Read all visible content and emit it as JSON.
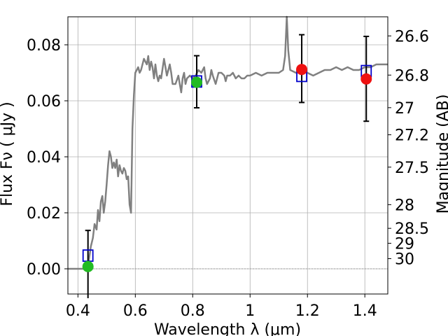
{
  "chart_data": {
    "type": "scatter",
    "title": "",
    "xlabel": "Wavelength  λ (μm)",
    "ylabel": "Flux  Fν  ( μJy )",
    "ylabel_right": "Magnitude (AB)",
    "xlim": [
      0.365,
      1.48
    ],
    "ylim": [
      -0.009,
      0.09
    ],
    "grid": true,
    "legend": "none",
    "x_ticks": [
      {
        "value": 0.4,
        "label": "0.4"
      },
      {
        "value": 0.6,
        "label": "0.6"
      },
      {
        "value": 0.8,
        "label": "0.8"
      },
      {
        "value": 1.0,
        "label": "1"
      },
      {
        "value": 1.2,
        "label": "1.2"
      },
      {
        "value": 1.4,
        "label": "1.4"
      }
    ],
    "y_ticks": [
      {
        "value": 0.0,
        "label": "0.00"
      },
      {
        "value": 0.02,
        "label": "0.02"
      },
      {
        "value": 0.04,
        "label": "0.04"
      },
      {
        "value": 0.06,
        "label": "0.06"
      },
      {
        "value": 0.08,
        "label": "0.08"
      }
    ],
    "mag_ticks": [
      {
        "value": 26.6,
        "label": "26.6"
      },
      {
        "value": 26.8,
        "label": "26.8"
      },
      {
        "value": 27.0,
        "label": "27"
      },
      {
        "value": 27.2,
        "label": "27.2"
      },
      {
        "value": 27.5,
        "label": "27.5"
      },
      {
        "value": 28.0,
        "label": "28"
      },
      {
        "value": 28.5,
        "label": "28.5"
      },
      {
        "value": 29.0,
        "label": "29"
      },
      {
        "value": 30.0,
        "label": "30"
      }
    ],
    "template_spectrum": {
      "color": "#808080",
      "points": [
        [
          0.365,
          0.0
        ],
        [
          0.41,
          0.0
        ],
        [
          0.42,
          0.0
        ],
        [
          0.43,
          0.002
        ],
        [
          0.438,
          0.003
        ],
        [
          0.445,
          0.008
        ],
        [
          0.452,
          0.011
        ],
        [
          0.458,
          0.016
        ],
        [
          0.465,
          0.014
        ],
        [
          0.47,
          0.021
        ],
        [
          0.475,
          0.017
        ],
        [
          0.48,
          0.024
        ],
        [
          0.485,
          0.026
        ],
        [
          0.49,
          0.02
        ],
        [
          0.495,
          0.024
        ],
        [
          0.5,
          0.03
        ],
        [
          0.505,
          0.037
        ],
        [
          0.51,
          0.042
        ],
        [
          0.515,
          0.04
        ],
        [
          0.52,
          0.036
        ],
        [
          0.525,
          0.038
        ],
        [
          0.53,
          0.036
        ],
        [
          0.535,
          0.039
        ],
        [
          0.54,
          0.033
        ],
        [
          0.545,
          0.037
        ],
        [
          0.55,
          0.035
        ],
        [
          0.555,
          0.034
        ],
        [
          0.56,
          0.036
        ],
        [
          0.565,
          0.035
        ],
        [
          0.57,
          0.032
        ],
        [
          0.575,
          0.033
        ],
        [
          0.58,
          0.023
        ],
        [
          0.585,
          0.02
        ],
        [
          0.59,
          0.05
        ],
        [
          0.595,
          0.062
        ],
        [
          0.6,
          0.07
        ],
        [
          0.61,
          0.072
        ],
        [
          0.615,
          0.07
        ],
        [
          0.62,
          0.071
        ],
        [
          0.63,
          0.075
        ],
        [
          0.64,
          0.073
        ],
        [
          0.645,
          0.076
        ],
        [
          0.65,
          0.071
        ],
        [
          0.655,
          0.074
        ],
        [
          0.66,
          0.072
        ],
        [
          0.665,
          0.068
        ],
        [
          0.67,
          0.073
        ],
        [
          0.675,
          0.069
        ],
        [
          0.68,
          0.067
        ],
        [
          0.685,
          0.069
        ],
        [
          0.69,
          0.068
        ],
        [
          0.7,
          0.075
        ],
        [
          0.705,
          0.072
        ],
        [
          0.71,
          0.069
        ],
        [
          0.715,
          0.071
        ],
        [
          0.72,
          0.073
        ],
        [
          0.725,
          0.07
        ],
        [
          0.73,
          0.066
        ],
        [
          0.74,
          0.066
        ],
        [
          0.75,
          0.069
        ],
        [
          0.755,
          0.066
        ],
        [
          0.76,
          0.063
        ],
        [
          0.765,
          0.068
        ],
        [
          0.77,
          0.07
        ],
        [
          0.775,
          0.066
        ],
        [
          0.78,
          0.068
        ],
        [
          0.79,
          0.069
        ],
        [
          0.8,
          0.068
        ],
        [
          0.81,
          0.069
        ],
        [
          0.82,
          0.071
        ],
        [
          0.83,
          0.07
        ],
        [
          0.84,
          0.072
        ],
        [
          0.845,
          0.068
        ],
        [
          0.85,
          0.066
        ],
        [
          0.86,
          0.068
        ],
        [
          0.865,
          0.071
        ],
        [
          0.87,
          0.069
        ],
        [
          0.88,
          0.066
        ],
        [
          0.89,
          0.07
        ],
        [
          0.9,
          0.07
        ],
        [
          0.91,
          0.069
        ],
        [
          0.915,
          0.067
        ],
        [
          0.92,
          0.069
        ],
        [
          0.93,
          0.069
        ],
        [
          0.94,
          0.07
        ],
        [
          0.95,
          0.068
        ],
        [
          0.96,
          0.069
        ],
        [
          0.97,
          0.068
        ],
        [
          0.98,
          0.068
        ],
        [
          0.99,
          0.069
        ],
        [
          1.0,
          0.069
        ],
        [
          1.02,
          0.07
        ],
        [
          1.04,
          0.069
        ],
        [
          1.06,
          0.07
        ],
        [
          1.08,
          0.07
        ],
        [
          1.1,
          0.07
        ],
        [
          1.115,
          0.071
        ],
        [
          1.122,
          0.076
        ],
        [
          1.128,
          0.09
        ],
        [
          1.133,
          0.078
        ],
        [
          1.14,
          0.071
        ],
        [
          1.16,
          0.07
        ],
        [
          1.18,
          0.071
        ],
        [
          1.2,
          0.07
        ],
        [
          1.22,
          0.069
        ],
        [
          1.24,
          0.07
        ],
        [
          1.26,
          0.071
        ],
        [
          1.28,
          0.071
        ],
        [
          1.3,
          0.072
        ],
        [
          1.32,
          0.071
        ],
        [
          1.34,
          0.072
        ],
        [
          1.36,
          0.071
        ],
        [
          1.38,
          0.071
        ],
        [
          1.4,
          0.072
        ],
        [
          1.42,
          0.072
        ],
        [
          1.44,
          0.073
        ],
        [
          1.46,
          0.073
        ],
        [
          1.48,
          0.073
        ]
      ]
    },
    "model_boxes": {
      "color": "#0000cc",
      "points": [
        {
          "x": 0.435,
          "y": 0.0047
        },
        {
          "x": 0.814,
          "y": 0.0669
        },
        {
          "x": 1.18,
          "y": 0.0689
        },
        {
          "x": 1.405,
          "y": 0.0706
        }
      ]
    },
    "measurements": [
      {
        "x": 0.435,
        "y": 0.0008,
        "err_low": -0.0105,
        "err_high": 0.0137,
        "color": "#22bb22"
      },
      {
        "x": 0.814,
        "y": 0.0666,
        "err_low": 0.0575,
        "err_high": 0.0761,
        "color": "#22bb22"
      },
      {
        "x": 1.18,
        "y": 0.0712,
        "err_low": 0.0594,
        "err_high": 0.0836,
        "color": "#ee1111"
      },
      {
        "x": 1.405,
        "y": 0.0678,
        "err_low": 0.0527,
        "err_high": 0.083,
        "color": "#ee1111"
      }
    ]
  }
}
